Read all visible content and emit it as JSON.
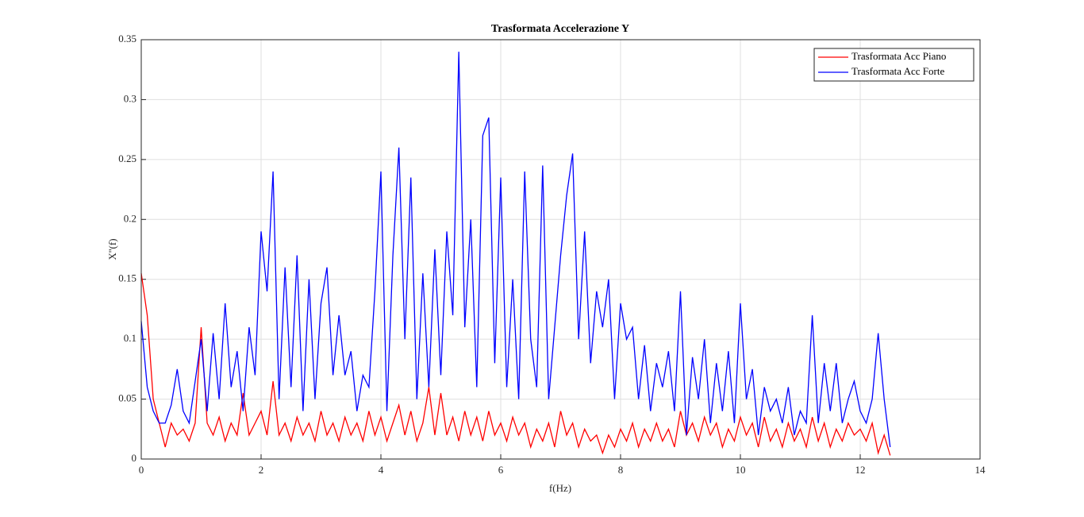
{
  "chart_data": {
    "type": "line",
    "title": "Trasformata Accelerazione Y",
    "x_label": "f(Hz)",
    "y_label": "X''(f)",
    "x": [
      0,
      0.1,
      0.2,
      0.3,
      0.4,
      0.5,
      0.6,
      0.7,
      0.8,
      0.9,
      1,
      1.1,
      1.2,
      1.3,
      1.4,
      1.5,
      1.6,
      1.7,
      1.8,
      1.9,
      2,
      2.1,
      2.2,
      2.3,
      2.4,
      2.5,
      2.6,
      2.7,
      2.8,
      2.9,
      3,
      3.1,
      3.2,
      3.3,
      3.4,
      3.5,
      3.6,
      3.7,
      3.8,
      3.9,
      4,
      4.1,
      4.2,
      4.3,
      4.4,
      4.5,
      4.6,
      4.7,
      4.8,
      4.9,
      5,
      5.1,
      5.2,
      5.3,
      5.4,
      5.5,
      5.6,
      5.7,
      5.8,
      5.9,
      6,
      6.1,
      6.2,
      6.3,
      6.4,
      6.5,
      6.6,
      6.7,
      6.8,
      6.9,
      7,
      7.1,
      7.2,
      7.3,
      7.4,
      7.5,
      7.6,
      7.7,
      7.8,
      7.9,
      8,
      8.1,
      8.2,
      8.3,
      8.4,
      8.5,
      8.6,
      8.7,
      8.8,
      8.9,
      9,
      9.1,
      9.2,
      9.3,
      9.4,
      9.5,
      9.6,
      9.7,
      9.8,
      9.9,
      10,
      10.1,
      10.2,
      10.3,
      10.4,
      10.5,
      10.6,
      10.7,
      10.8,
      10.9,
      11,
      11.1,
      11.2,
      11.3,
      11.4,
      11.5,
      11.6,
      11.7,
      11.8,
      11.9,
      12,
      12.1,
      12.2,
      12.3,
      12.4,
      12.5
    ],
    "series": [
      {
        "name": "Trasformata Acc Piano",
        "color": "#ff0000",
        "values": [
          0.155,
          0.12,
          0.05,
          0.03,
          0.01,
          0.03,
          0.02,
          0.025,
          0.015,
          0.03,
          0.11,
          0.03,
          0.02,
          0.035,
          0.015,
          0.03,
          0.02,
          0.055,
          0.02,
          0.03,
          0.04,
          0.02,
          0.065,
          0.02,
          0.03,
          0.015,
          0.035,
          0.02,
          0.03,
          0.015,
          0.04,
          0.02,
          0.03,
          0.015,
          0.035,
          0.02,
          0.03,
          0.015,
          0.04,
          0.02,
          0.035,
          0.015,
          0.03,
          0.045,
          0.02,
          0.04,
          0.015,
          0.03,
          0.06,
          0.02,
          0.055,
          0.02,
          0.035,
          0.015,
          0.04,
          0.02,
          0.035,
          0.015,
          0.04,
          0.02,
          0.03,
          0.015,
          0.035,
          0.02,
          0.03,
          0.01,
          0.025,
          0.015,
          0.03,
          0.01,
          0.04,
          0.02,
          0.03,
          0.01,
          0.025,
          0.015,
          0.02,
          0.005,
          0.02,
          0.01,
          0.025,
          0.015,
          0.03,
          0.01,
          0.025,
          0.015,
          0.03,
          0.015,
          0.025,
          0.01,
          0.04,
          0.02,
          0.03,
          0.015,
          0.035,
          0.02,
          0.03,
          0.01,
          0.025,
          0.015,
          0.035,
          0.02,
          0.03,
          0.01,
          0.035,
          0.015,
          0.025,
          0.01,
          0.03,
          0.015,
          0.025,
          0.01,
          0.035,
          0.015,
          0.03,
          0.01,
          0.025,
          0.015,
          0.03,
          0.02,
          0.025,
          0.015,
          0.03,
          0.005,
          0.02,
          0.003
        ]
      },
      {
        "name": "Trasformata Acc Forte",
        "color": "#0000ff",
        "values": [
          0.115,
          0.06,
          0.04,
          0.03,
          0.03,
          0.045,
          0.075,
          0.04,
          0.03,
          0.065,
          0.1,
          0.04,
          0.105,
          0.05,
          0.13,
          0.06,
          0.09,
          0.04,
          0.11,
          0.07,
          0.19,
          0.14,
          0.24,
          0.05,
          0.16,
          0.06,
          0.17,
          0.04,
          0.15,
          0.05,
          0.13,
          0.16,
          0.07,
          0.12,
          0.07,
          0.09,
          0.04,
          0.07,
          0.06,
          0.14,
          0.24,
          0.04,
          0.17,
          0.26,
          0.1,
          0.235,
          0.05,
          0.155,
          0.06,
          0.175,
          0.07,
          0.19,
          0.12,
          0.34,
          0.11,
          0.2,
          0.06,
          0.27,
          0.285,
          0.08,
          0.235,
          0.06,
          0.15,
          0.05,
          0.24,
          0.1,
          0.06,
          0.245,
          0.05,
          0.11,
          0.17,
          0.22,
          0.255,
          0.1,
          0.19,
          0.08,
          0.14,
          0.11,
          0.15,
          0.05,
          0.13,
          0.1,
          0.11,
          0.05,
          0.095,
          0.04,
          0.08,
          0.06,
          0.09,
          0.04,
          0.14,
          0.02,
          0.085,
          0.05,
          0.1,
          0.03,
          0.08,
          0.04,
          0.09,
          0.03,
          0.13,
          0.05,
          0.075,
          0.02,
          0.06,
          0.04,
          0.05,
          0.03,
          0.06,
          0.02,
          0.04,
          0.03,
          0.12,
          0.03,
          0.08,
          0.04,
          0.08,
          0.03,
          0.05,
          0.065,
          0.04,
          0.03,
          0.05,
          0.105,
          0.05,
          0.01
        ]
      }
    ],
    "xlim": [
      0,
      14
    ],
    "xticks": [
      0,
      2,
      4,
      6,
      8,
      10,
      12,
      14
    ],
    "ylim": [
      0,
      0.35
    ],
    "yticks": [
      0,
      0.05,
      0.1,
      0.15,
      0.2,
      0.25,
      0.3,
      0.35
    ],
    "grid": true,
    "legend": "upper right"
  }
}
